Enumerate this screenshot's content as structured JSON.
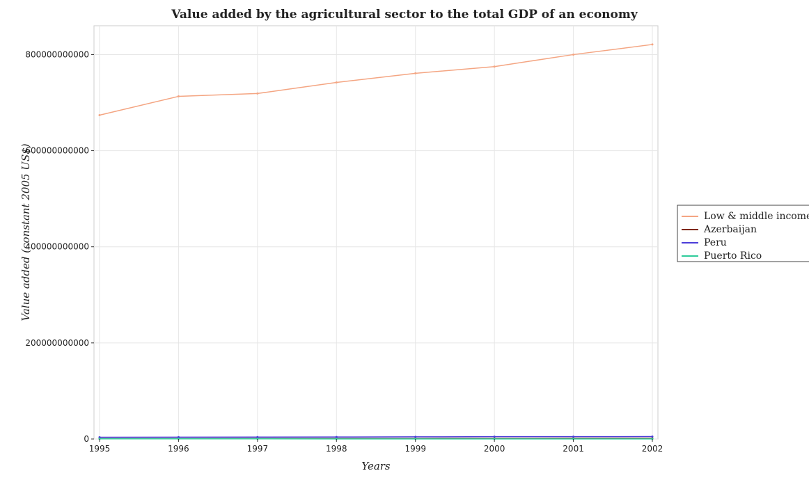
{
  "chart_data": {
    "type": "line",
    "title": "Value added by the agricultural sector to the total GDP of an economy",
    "xlabel": "Years",
    "ylabel": "Value added (constant 2005 US$)",
    "x": [
      1995,
      1996,
      1997,
      1998,
      1999,
      2000,
      2001,
      2002
    ],
    "x_tick_labels": [
      "1995",
      "1996",
      "1997",
      "1998",
      "1999",
      "2000",
      "2001",
      "2002"
    ],
    "ylim": [
      0,
      860000000000
    ],
    "y_ticks": [
      0,
      200000000000,
      400000000000,
      600000000000,
      800000000000
    ],
    "y_tick_labels": [
      "0",
      "200000000000",
      "400000000000",
      "600000000000",
      "800000000000"
    ],
    "grid": true,
    "legend_position": "right",
    "series": [
      {
        "name": "Low & middle income",
        "color": "#f4a582",
        "values": [
          674000000000,
          713000000000,
          719000000000,
          742000000000,
          761000000000,
          775000000000,
          800000000000,
          821000000000
        ]
      },
      {
        "name": "Azerbaijan",
        "color": "#7f2704",
        "values": [
          800000000,
          810000000,
          850000000,
          900000000,
          970000000,
          1080000000,
          1200000000,
          1270000000
        ]
      },
      {
        "name": "Peru",
        "color": "#4b3dd9",
        "values": [
          3600000000,
          3800000000,
          4000000000,
          4100000000,
          4500000000,
          4800000000,
          4800000000,
          5100000000
        ]
      },
      {
        "name": "Puerto Rico",
        "color": "#2ecc9a",
        "values": [
          300000000,
          310000000,
          280000000,
          260000000,
          250000000,
          240000000,
          230000000,
          220000000
        ]
      }
    ]
  }
}
